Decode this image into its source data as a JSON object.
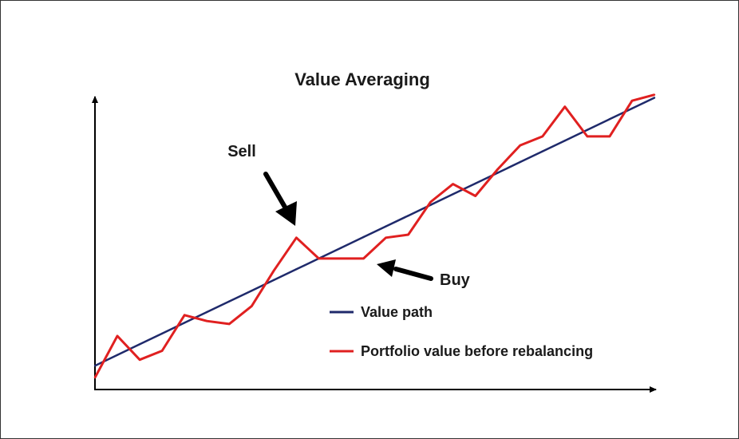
{
  "chart_data": {
    "type": "line",
    "title": "Value Averaging",
    "xlabel": "",
    "ylabel": "",
    "x": [
      0,
      1,
      2,
      3,
      4,
      5,
      6,
      7,
      8,
      9,
      10,
      11,
      12,
      13,
      14,
      15,
      16,
      17,
      18,
      19,
      20,
      21,
      22,
      23,
      24,
      25
    ],
    "xlim": [
      0,
      25
    ],
    "ylim": [
      0,
      100
    ],
    "grid": false,
    "legend_position": "center-right",
    "series": [
      {
        "name": "Value path",
        "color": "#1f2a6b",
        "values": [
          8,
          11.6,
          15.2,
          18.8,
          22.4,
          26,
          29.6,
          33.2,
          36.8,
          40.4,
          44,
          47.6,
          51.2,
          54.8,
          58.4,
          62,
          65.6,
          69.2,
          72.8,
          76.4,
          80,
          83.6,
          87.2,
          90.8,
          94.4,
          98
        ]
      },
      {
        "name": "Portfolio value before rebalancing",
        "color": "#e02020",
        "values": [
          4,
          18,
          10,
          13,
          25,
          23,
          22,
          28,
          40,
          51,
          44,
          44,
          44,
          51,
          52,
          63,
          69,
          65,
          74,
          82,
          85,
          95,
          85,
          85,
          97,
          99
        ]
      }
    ],
    "annotations": [
      {
        "text": "Sell",
        "target_x": 9,
        "target_y": 51
      },
      {
        "text": "Buy",
        "target_x": 12.6,
        "target_y": 43
      }
    ]
  }
}
